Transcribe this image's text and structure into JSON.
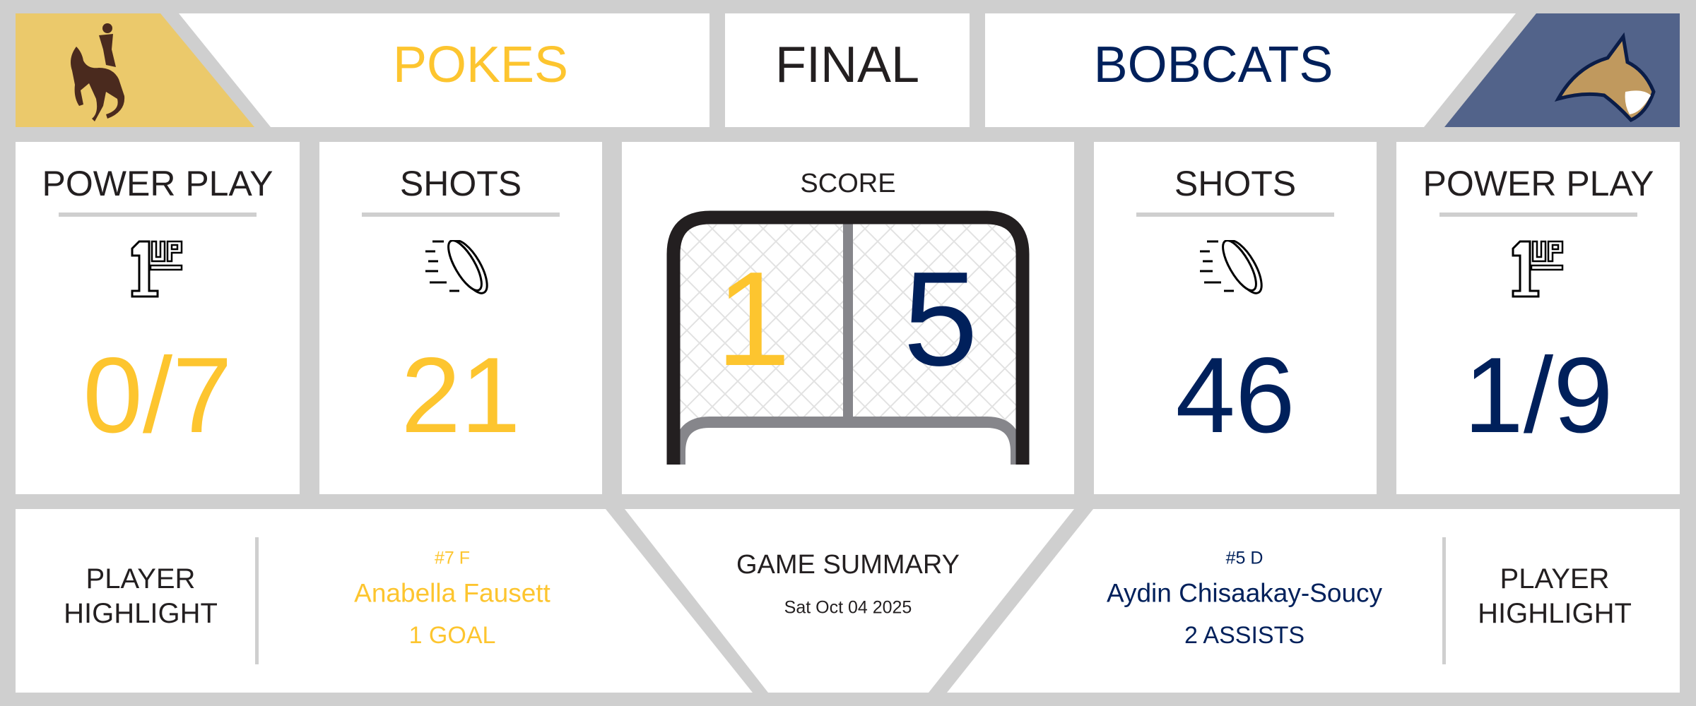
{
  "header": {
    "home_team": "POKES",
    "status": "FINAL",
    "away_team": "BOBCATS",
    "home_logo": "bucking-horse-logo",
    "away_logo": "bobcat-logo"
  },
  "colors": {
    "home": "#fdc52f",
    "home_panel": "#ebc96b",
    "away": "#00205b",
    "away_panel": "#52638a",
    "background": "#cfcfcf"
  },
  "home": {
    "power_play_label": "POWER PLAY",
    "power_play": "0/7",
    "shots_label": "SHOTS",
    "shots": "21",
    "score": "1"
  },
  "away": {
    "power_play_label": "POWER PLAY",
    "power_play": "1/9",
    "shots_label": "SHOTS",
    "shots": "46",
    "score": "5"
  },
  "score_label": "SCORE",
  "icons": {
    "power_play": "1up-icon",
    "shots": "puck-icon",
    "score": "hockey-net-icon"
  },
  "summary": {
    "title": "GAME SUMMARY",
    "date": "Sat Oct 04 2025"
  },
  "home_highlight": {
    "label_line1": "PLAYER",
    "label_line2": "HIGHLIGHT",
    "number_position": "#7 F",
    "name": "Anabella Fausett",
    "stat": "1 GOAL"
  },
  "away_highlight": {
    "label_line1": "PLAYER",
    "label_line2": "HIGHLIGHT",
    "number_position": "#5 D",
    "name": "Aydin Chisaakay-Soucy",
    "stat": "2 ASSISTS"
  }
}
